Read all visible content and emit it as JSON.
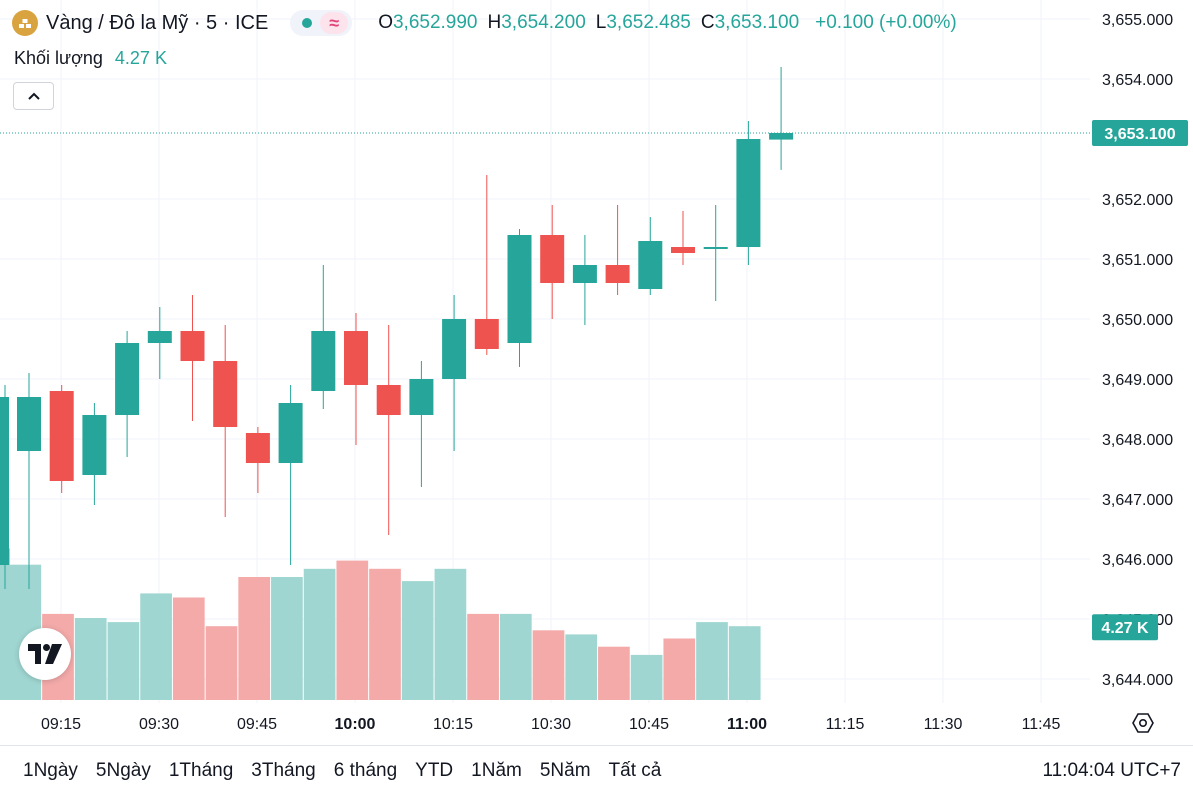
{
  "symbol": {
    "title": "Vàng / Đô la Mỹ · 5 · ICE",
    "open_key": "O",
    "open": "3,652.990",
    "high_key": "H",
    "high": "3,654.200",
    "low_key": "L",
    "low": "3,652.485",
    "close_key": "C",
    "close": "3,653.100",
    "change": "+0.100 (+0.00%)",
    "status_wave": "≈"
  },
  "volume_legend": {
    "label": "Khối lượng",
    "value": "4.27 K"
  },
  "icons": {
    "logo": "gold-bars-icon",
    "collapse": "chevron-up-icon",
    "brand": "tradingview-logo",
    "settings": "gear-icon"
  },
  "colors": {
    "up": "#26a69a",
    "down": "#ef5350",
    "up_volume": "#9fd6d1",
    "down_volume": "#f3aaa9",
    "status_dot": "#26a69a",
    "status_wave": "#e0447a",
    "logo": "#d9a33f"
  },
  "chart_data": {
    "type": "candlestick",
    "time_labels": [
      "09:15",
      "09:30",
      "09:45",
      "10:00",
      "10:15",
      "10:30",
      "10:45",
      "11:00",
      "11:15",
      "11:30",
      "11:45"
    ],
    "bold_time_labels": [
      "10:00",
      "11:00"
    ],
    "y_ticks": [
      "3,655.000",
      "3,654.000",
      "3,652.000",
      "3,651.000",
      "3,650.000",
      "3,649.000",
      "3,648.000",
      "3,647.000",
      "3,646.000",
      "3,645.000",
      "3,644.000"
    ],
    "ylim": [
      3643.7,
      3655.0
    ],
    "ohlc": [
      [
        3647.8,
        3649.1,
        3645.5,
        3648.7
      ],
      [
        3648.8,
        3648.9,
        3647.1,
        3647.3
      ],
      [
        3647.4,
        3648.6,
        3646.9,
        3648.4
      ],
      [
        3648.4,
        3649.8,
        3647.7,
        3649.6
      ],
      [
        3649.6,
        3650.2,
        3649.0,
        3649.8
      ],
      [
        3649.8,
        3650.4,
        3648.3,
        3649.3
      ],
      [
        3649.3,
        3649.9,
        3646.7,
        3648.2
      ],
      [
        3648.1,
        3648.2,
        3647.1,
        3647.6
      ],
      [
        3647.6,
        3648.9,
        3645.9,
        3648.6
      ],
      [
        3648.8,
        3650.9,
        3648.5,
        3649.8
      ],
      [
        3649.8,
        3650.1,
        3647.9,
        3648.9
      ],
      [
        3648.9,
        3649.9,
        3646.4,
        3648.4
      ],
      [
        3648.4,
        3649.3,
        3647.2,
        3649.0
      ],
      [
        3649.0,
        3650.4,
        3647.8,
        3650.0
      ],
      [
        3650.0,
        3652.4,
        3649.4,
        3649.5
      ],
      [
        3649.6,
        3651.5,
        3649.2,
        3651.4
      ],
      [
        3651.4,
        3651.9,
        3650.0,
        3650.6
      ],
      [
        3650.6,
        3651.4,
        3649.9,
        3650.9
      ],
      [
        3650.9,
        3651.9,
        3650.4,
        3650.6
      ],
      [
        3650.5,
        3651.7,
        3650.4,
        3651.3
      ],
      [
        3651.2,
        3651.8,
        3650.9,
        3651.1
      ],
      [
        3651.2,
        3651.9,
        3650.3,
        3651.2
      ],
      [
        3651.2,
        3653.3,
        3650.9,
        3653.0
      ],
      [
        3652.99,
        3654.2,
        3652.485,
        3653.1
      ]
    ],
    "first_bar_partial": {
      "open": 3645.9,
      "high": 3648.9,
      "low": 3645.5,
      "close": 3648.7
    },
    "volume": [
      3.3,
      2.1,
      2.0,
      1.9,
      2.6,
      2.5,
      1.8,
      3.0,
      3.0,
      3.2,
      3.4,
      3.2,
      2.9,
      3.2,
      2.1,
      2.1,
      1.7,
      1.6,
      1.3,
      1.1,
      1.5,
      1.9,
      1.8
    ],
    "first_volume_partial": 3.7,
    "current_price_label": "3,653.100",
    "current_volume_label": "4.27 K"
  },
  "bottom_bar": {
    "periods": [
      "1Ngày",
      "5Ngày",
      "1Tháng",
      "3Tháng",
      "6 tháng",
      "YTD",
      "1Năm",
      "5Năm",
      "Tất cả"
    ],
    "clock": "11:04:04 UTC+7"
  }
}
